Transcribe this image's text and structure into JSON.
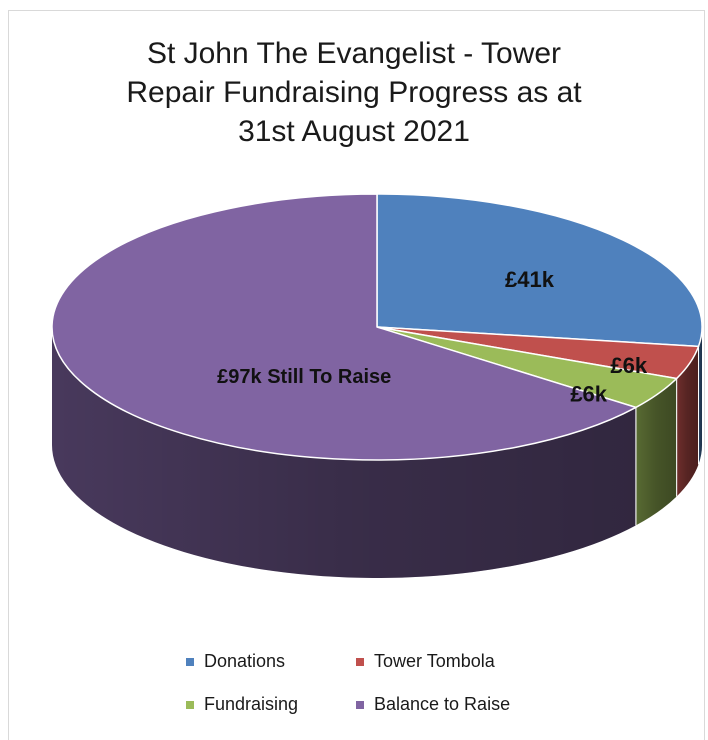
{
  "chart_data": {
    "type": "pie",
    "title_lines": [
      "St John The Evangelist - Tower",
      "Repair Fundraising Progress as at",
      "31st August 2021"
    ],
    "series": [
      {
        "values": [
          41,
          6,
          6,
          97
        ],
        "data_labels": [
          "£41k",
          "£6k",
          "£6k",
          "£97k Still To Raise"
        ]
      }
    ],
    "categories": [
      "Donations",
      "Tower Tombola",
      "Fundraising",
      "Balance to Raise"
    ],
    "colors": [
      "#4f81bd",
      "#c0504d",
      "#9bbb59",
      "#8064a2"
    ],
    "side_colors": [
      "#2f4d71",
      "#73302e",
      "#5d7035",
      "#4c3c61"
    ],
    "legend_position": "bottom",
    "style": "3d"
  }
}
